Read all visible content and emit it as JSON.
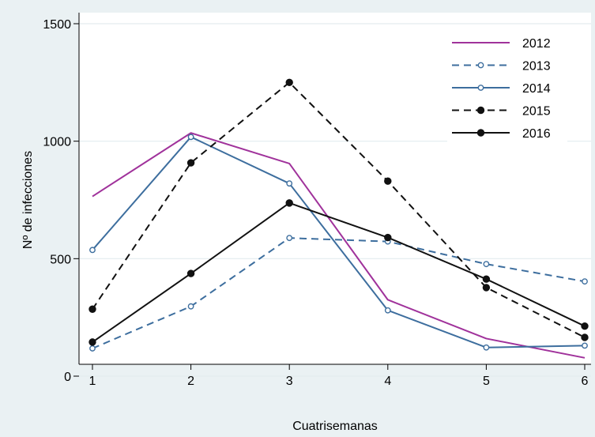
{
  "chart_data": {
    "type": "line",
    "title": "",
    "xlabel": "Cuatrisemanas",
    "ylabel": "Nº de infecciones",
    "x": [
      1,
      2,
      3,
      4,
      5,
      6
    ],
    "xlim": [
      1,
      6
    ],
    "ylim": [
      0,
      1500
    ],
    "yticks": [
      0,
      500,
      1000,
      1500
    ],
    "xticks": [
      1,
      2,
      3,
      4,
      5,
      6
    ],
    "grid": "horizontal",
    "legend_position": "top-right",
    "series": [
      {
        "name": "2012",
        "values": [
          765,
          1035,
          905,
          325,
          160,
          78
        ],
        "color": "#a0329b",
        "dash": "solid",
        "marker": "none"
      },
      {
        "name": "2013",
        "values": [
          118,
          297,
          588,
          573,
          477,
          403
        ],
        "color": "#3d6e9e",
        "dash": "dashed",
        "marker": "hollow-circle"
      },
      {
        "name": "2014",
        "values": [
          537,
          1018,
          820,
          280,
          122,
          130
        ],
        "color": "#3d6e9e",
        "dash": "solid",
        "marker": "hollow-circle"
      },
      {
        "name": "2015",
        "values": [
          285,
          908,
          1250,
          830,
          377,
          165
        ],
        "color": "#111111",
        "dash": "dashed",
        "marker": "filled-circle"
      },
      {
        "name": "2016",
        "values": [
          145,
          437,
          737,
          590,
          413,
          213
        ],
        "color": "#111111",
        "dash": "solid",
        "marker": "filled-circle"
      }
    ]
  }
}
